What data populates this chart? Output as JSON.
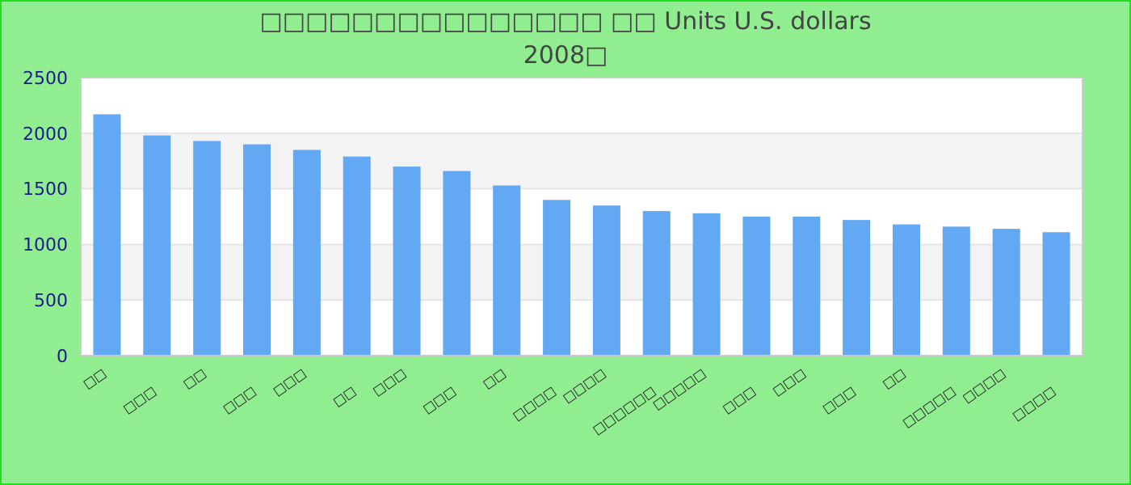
{
  "chart_data": {
    "type": "bar",
    "title": "□□□□□□□□□□□□□□□ □□ Units U.S. dollars\n2008□",
    "categories": [
      "□□",
      "□□□",
      "□□",
      "□□□",
      "□□□",
      "□□",
      "□□□",
      "□□□",
      "□□",
      "□□□□",
      "□□□□",
      "□□□□□□",
      "□□□□□",
      "□□□",
      "□□□",
      "□□□",
      "□□",
      "□□□□□",
      "□□□□",
      "□□□□"
    ],
    "values": [
      2170,
      1980,
      1930,
      1900,
      1850,
      1790,
      1700,
      1660,
      1530,
      1400,
      1350,
      1300,
      1280,
      1250,
      1250,
      1220,
      1180,
      1160,
      1140,
      1110
    ],
    "color": "#63a8f2",
    "ylim": [
      0,
      2500
    ],
    "yticks": [
      0,
      500,
      1000,
      1500,
      2000,
      2500
    ],
    "grid": "y"
  }
}
